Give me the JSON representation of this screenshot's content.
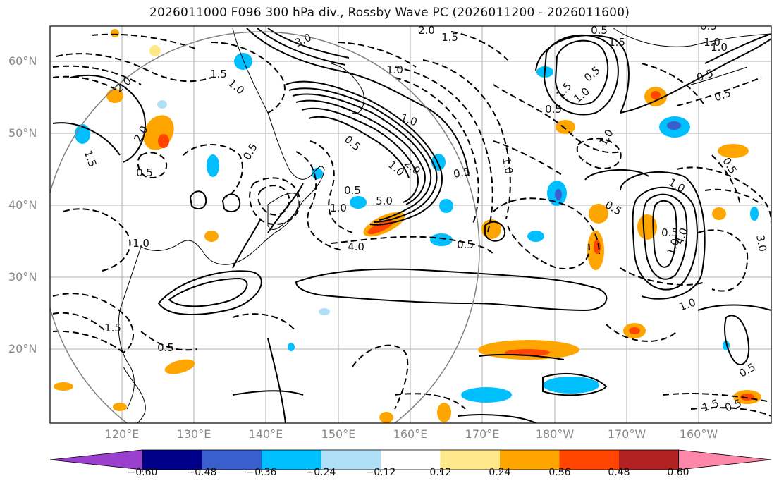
{
  "title": "2026011000 F096 300 hPa div., Rossby Wave PC (2026011200 - 2026011600)",
  "lat_labels": [
    "60°N",
    "50°N",
    "40°N",
    "30°N",
    "20°N"
  ],
  "lon_labels": [
    "120°E",
    "130°E",
    "140°E",
    "150°E",
    "160°E",
    "170°E",
    "180°W",
    "170°W",
    "160°W"
  ],
  "contour_labels": [
    "3.0",
    "2.0",
    "1.5",
    "1.0",
    "0.5",
    "2.0",
    "1.5",
    "0.5",
    "1.0",
    "1.5",
    "2.0",
    "0.5",
    "1.0",
    "0.5",
    "1.0",
    "2.0",
    "5.0",
    "4.0",
    "1.0",
    "0.5",
    "0.5",
    "0.5",
    "1.0",
    "0.5",
    "1.5",
    "1.0",
    "1.5",
    "1.0",
    "0.5",
    "1.0",
    "0.5",
    "0.5",
    "0.5",
    "0.5",
    "0.5",
    "0.5",
    "1.0",
    "4.0",
    "3.0",
    "1.0",
    "0.5",
    "1.5",
    "0.5",
    "1.0",
    "1.0",
    "1.5",
    "0.5",
    "1.0"
  ],
  "colorbar": {
    "colors": [
      "#9b3fcf",
      "#00008b",
      "#3a5fcd",
      "#00bfff",
      "#b0e0f8",
      "#ffffff",
      "#ffe88a",
      "#ffa500",
      "#ff4500",
      "#b22222",
      "#ff88aa"
    ],
    "tick_labels": [
      "−0.60",
      "−0.48",
      "−0.36",
      "−0.24",
      "−0.12",
      "0.12",
      "0.24",
      "0.36",
      "0.48",
      "0.60"
    ]
  },
  "colors": {
    "grid": "#b0b0b0",
    "coast": "#000000",
    "circle": "#808080",
    "contour": "#000000"
  }
}
